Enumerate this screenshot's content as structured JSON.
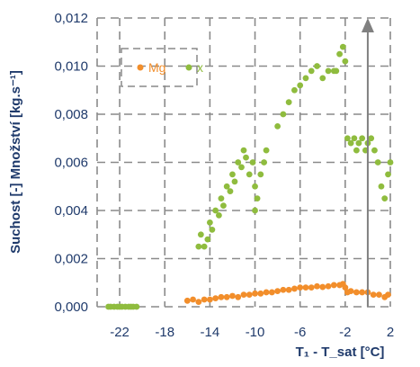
{
  "chart_data": {
    "type": "scatter",
    "title": "",
    "xlabel": "T₁ - T_sat [°C]",
    "ylabel": "Suchost [-] Množství [kg.s⁻¹]",
    "xlim": [
      -24,
      2
    ],
    "ylim": [
      0,
      0.012
    ],
    "x_ticks": [
      -22,
      -18,
      -14,
      -10,
      -6,
      -2,
      2
    ],
    "x_tick_labels": [
      "-22",
      "-18",
      "-14",
      "-10",
      "-6",
      "-2",
      "2"
    ],
    "y_ticks": [
      0,
      0.002,
      0.004,
      0.006,
      0.008,
      0.01,
      0.012
    ],
    "y_tick_labels": [
      "0,000",
      "0,002",
      "0,004",
      "0,006",
      "0,008",
      "0,010",
      "0,012"
    ],
    "grid": true,
    "legend": "top-left",
    "arrow_x": 0,
    "series": [
      {
        "name": "Mg",
        "color": "#f28e2b",
        "points": [
          [
            -16,
            0.00025
          ],
          [
            -15.5,
            0.0003
          ],
          [
            -15,
            0.0002
          ],
          [
            -14.5,
            0.0003
          ],
          [
            -14,
            0.0003
          ],
          [
            -13.5,
            0.00035
          ],
          [
            -13,
            0.0004
          ],
          [
            -12.5,
            0.0004
          ],
          [
            -12,
            0.00045
          ],
          [
            -11.5,
            0.0004
          ],
          [
            -11,
            0.0005
          ],
          [
            -10.5,
            0.0005
          ],
          [
            -10,
            0.00055
          ],
          [
            -9.5,
            0.00055
          ],
          [
            -9,
            0.0006
          ],
          [
            -8.5,
            0.0006
          ],
          [
            -8,
            0.00065
          ],
          [
            -7.5,
            0.0007
          ],
          [
            -7,
            0.0007
          ],
          [
            -6.5,
            0.00075
          ],
          [
            -6,
            0.0008
          ],
          [
            -5.5,
            0.0008
          ],
          [
            -5,
            0.0008
          ],
          [
            -4.5,
            0.00085
          ],
          [
            -4,
            0.00082
          ],
          [
            -3.5,
            0.00085
          ],
          [
            -3,
            0.0009
          ],
          [
            -2.5,
            0.0009
          ],
          [
            -2.2,
            0.00095
          ],
          [
            -2,
            0.0008
          ],
          [
            -1.8,
            0.0006
          ],
          [
            -1.5,
            0.00065
          ],
          [
            -1,
            0.0006
          ],
          [
            -0.5,
            0.0006
          ],
          [
            0,
            0.0006
          ],
          [
            0.5,
            0.0005
          ],
          [
            1,
            0.0005
          ],
          [
            1.5,
            0.0004
          ],
          [
            1.8,
            0.0005
          ]
        ]
      },
      {
        "name": "x",
        "color": "#8fbc3e",
        "points": [
          [
            -23,
            0
          ],
          [
            -22.8,
            0
          ],
          [
            -22.5,
            0
          ],
          [
            -22.2,
            0
          ],
          [
            -22,
            0
          ],
          [
            -21.8,
            0
          ],
          [
            -21.5,
            0
          ],
          [
            -21.2,
            0
          ],
          [
            -21,
            0
          ],
          [
            -20.8,
            0
          ],
          [
            -20.5,
            0
          ],
          [
            -15,
            0.0025
          ],
          [
            -14.8,
            0.003
          ],
          [
            -14.5,
            0.0025
          ],
          [
            -14.2,
            0.0028
          ],
          [
            -14,
            0.0035
          ],
          [
            -13.8,
            0.0032
          ],
          [
            -13.5,
            0.004
          ],
          [
            -13.2,
            0.0038
          ],
          [
            -13,
            0.0045
          ],
          [
            -12.8,
            0.0042
          ],
          [
            -12.5,
            0.005
          ],
          [
            -12.2,
            0.0048
          ],
          [
            -12,
            0.0055
          ],
          [
            -11.8,
            0.0052
          ],
          [
            -11.5,
            0.006
          ],
          [
            -11.2,
            0.0058
          ],
          [
            -11,
            0.0065
          ],
          [
            -10.8,
            0.0062
          ],
          [
            -10.5,
            0.0055
          ],
          [
            -10.2,
            0.006
          ],
          [
            -10,
            0.005
          ],
          [
            -10,
            0.004
          ],
          [
            -9.8,
            0.0045
          ],
          [
            -9.5,
            0.0055
          ],
          [
            -9.2,
            0.006
          ],
          [
            -9,
            0.0065
          ],
          [
            -8,
            0.0075
          ],
          [
            -7.5,
            0.008
          ],
          [
            -7,
            0.0085
          ],
          [
            -6.5,
            0.009
          ],
          [
            -6,
            0.0092
          ],
          [
            -5.5,
            0.0095
          ],
          [
            -5,
            0.0098
          ],
          [
            -4.5,
            0.01
          ],
          [
            -4,
            0.0095
          ],
          [
            -3.5,
            0.0098
          ],
          [
            -3,
            0.0098
          ],
          [
            -2.8,
            0.0098
          ],
          [
            -2.5,
            0.0105
          ],
          [
            -2.2,
            0.0108
          ],
          [
            -2,
            0.0102
          ],
          [
            -1.8,
            0.007
          ],
          [
            -1.5,
            0.0068
          ],
          [
            -1.2,
            0.007
          ],
          [
            -1,
            0.0065
          ],
          [
            -0.8,
            0.0068
          ],
          [
            -0.5,
            0.007
          ],
          [
            -0.2,
            0.0065
          ],
          [
            0,
            0.0068
          ],
          [
            0.3,
            0.007
          ],
          [
            0.6,
            0.0065
          ],
          [
            0.9,
            0.006
          ],
          [
            1.2,
            0.005
          ],
          [
            1.5,
            0.0045
          ],
          [
            1.8,
            0.0055
          ],
          [
            2,
            0.006
          ]
        ]
      }
    ]
  }
}
